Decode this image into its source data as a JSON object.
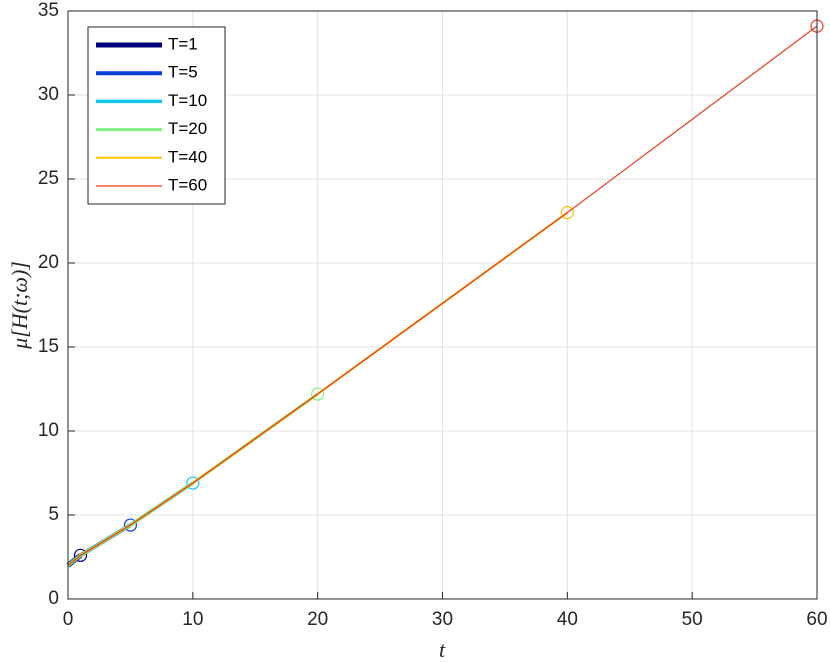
{
  "chart_data": {
    "type": "line",
    "xlabel": "t",
    "ylabel": "μ[H(t;ω)]",
    "xlim": [
      0,
      60
    ],
    "ylim": [
      0,
      35
    ],
    "xticks": [
      0,
      10,
      20,
      30,
      40,
      50,
      60
    ],
    "yticks": [
      0,
      5,
      10,
      15,
      20,
      25,
      30,
      35
    ],
    "grid": true,
    "legend": "upper-left",
    "marker": "circle-at-end",
    "series": [
      {
        "name": "T=1",
        "color": "#00007f",
        "line_width": 5,
        "x": [
          0,
          1
        ],
        "values": [
          2.0,
          2.6
        ]
      },
      {
        "name": "T=5",
        "color": "#0a3fd6",
        "line_width": 4,
        "x": [
          0,
          1,
          5
        ],
        "values": [
          2.0,
          2.6,
          4.4
        ]
      },
      {
        "name": "T=10",
        "color": "#10c8f0",
        "line_width": 3.5,
        "x": [
          0,
          1,
          5,
          10
        ],
        "values": [
          2.0,
          2.6,
          4.4,
          6.9
        ]
      },
      {
        "name": "T=20",
        "color": "#80f080",
        "line_width": 3,
        "x": [
          0,
          1,
          5,
          10,
          20
        ],
        "values": [
          2.0,
          2.6,
          4.4,
          6.9,
          12.2
        ]
      },
      {
        "name": "T=40",
        "color": "#f5c400",
        "line_width": 2,
        "x": [
          0,
          1,
          5,
          10,
          20,
          40
        ],
        "values": [
          2.0,
          2.6,
          4.4,
          6.9,
          12.2,
          23.0
        ]
      },
      {
        "name": "T=60",
        "color": "#ee3a1e",
        "line_width": 1.2,
        "x": [
          0,
          1,
          5,
          10,
          20,
          40,
          60
        ],
        "values": [
          2.0,
          2.6,
          4.4,
          6.9,
          12.2,
          23.0,
          34.1
        ]
      }
    ]
  }
}
